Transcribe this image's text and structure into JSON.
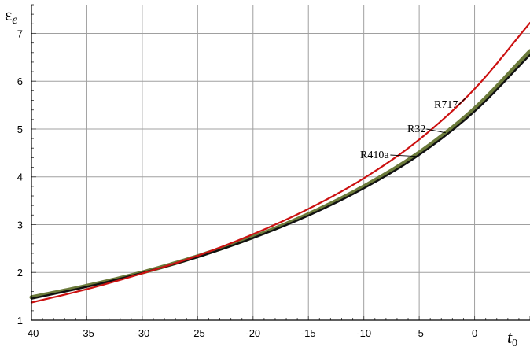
{
  "chart_data": {
    "type": "line",
    "ylabel": "ε",
    "ylabel_sub": "e",
    "xlabel": "t",
    "xlabel_sub": "0",
    "xlim": [
      -40,
      5
    ],
    "ylim": [
      1,
      7.6
    ],
    "x_ticks": [
      -40,
      -35,
      -30,
      -25,
      -20,
      -15,
      -10,
      -5,
      0
    ],
    "x_tick_labels": [
      "-40",
      "-35",
      "-30",
      "-25",
      "-20",
      "-15",
      "-10",
      "-5",
      "0"
    ],
    "y_ticks": [
      1,
      2,
      3,
      4,
      5,
      6,
      7
    ],
    "y_tick_labels": [
      "1",
      "2",
      "3",
      "4",
      "5",
      "6",
      "7"
    ],
    "grid": true,
    "series": [
      {
        "name": "R717",
        "color": "#cc1111",
        "x": [
          -40,
          -35,
          -30,
          -25,
          -20,
          -15,
          -10,
          -5,
          0,
          5
        ],
        "y": [
          1.37,
          1.65,
          1.98,
          2.35,
          2.8,
          3.33,
          3.97,
          4.78,
          5.84,
          7.22
        ]
      },
      {
        "name": "R32",
        "color": "#6b7a3a",
        "x": [
          -40,
          -35,
          -30,
          -25,
          -20,
          -15,
          -10,
          -5,
          0,
          5
        ],
        "y": [
          1.48,
          1.72,
          2.0,
          2.34,
          2.74,
          3.22,
          3.8,
          4.51,
          5.43,
          6.63
        ]
      },
      {
        "name": "R410a",
        "color": "#111111",
        "x": [
          -40,
          -35,
          -30,
          -25,
          -20,
          -15,
          -10,
          -5,
          0,
          5
        ],
        "y": [
          1.45,
          1.7,
          1.99,
          2.32,
          2.72,
          3.19,
          3.76,
          4.46,
          5.37,
          6.55
        ]
      }
    ],
    "annotations": [
      {
        "text": "R717",
        "series": "R717"
      },
      {
        "text": "R32",
        "series": "R32"
      },
      {
        "text": "R410a",
        "series": "R410a"
      }
    ]
  }
}
